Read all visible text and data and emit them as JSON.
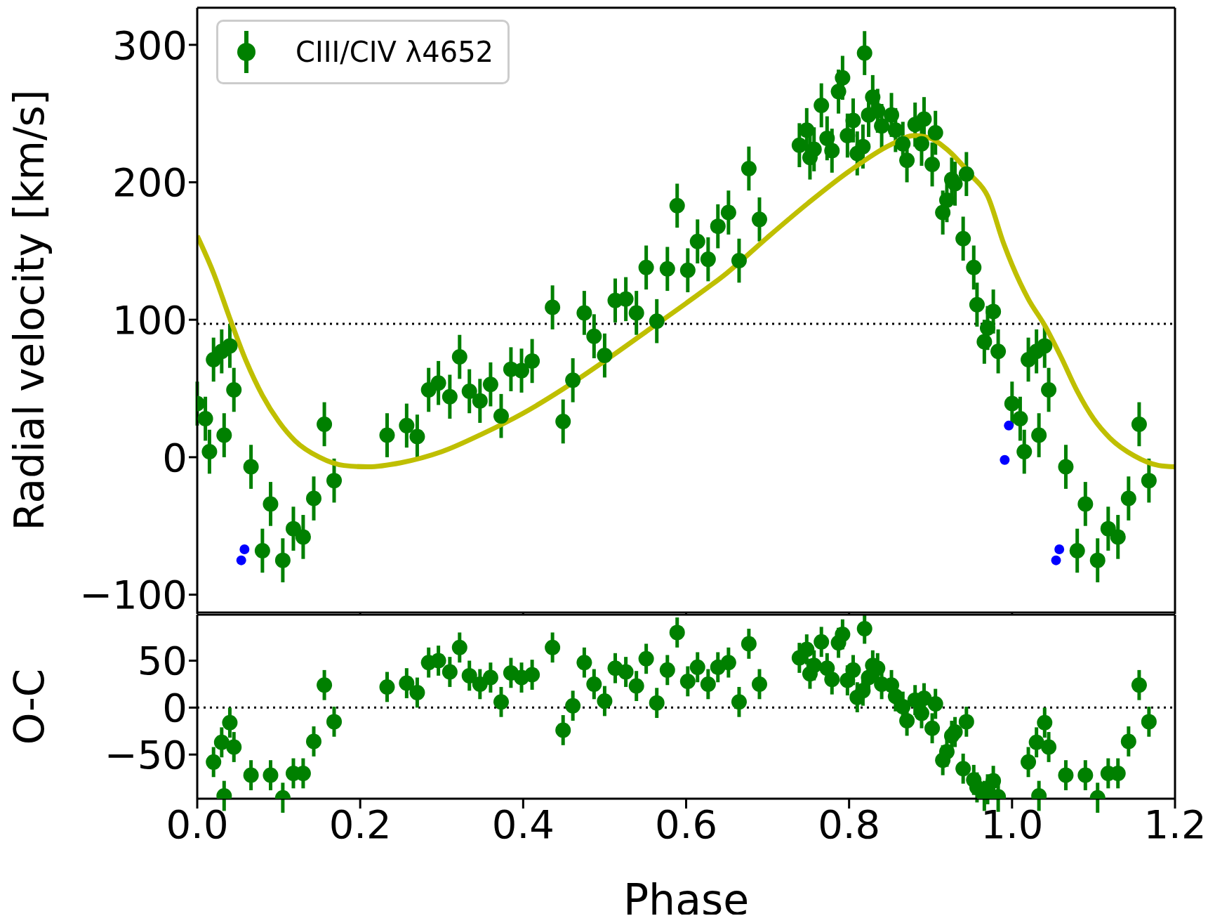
{
  "chart_data": [
    {
      "type": "scatter",
      "ylabel": "Radial velocity [km/s]",
      "xlim": [
        0,
        1.2
      ],
      "xticks": [
        0,
        0.2,
        0.4,
        0.6,
        0.8,
        1,
        1.2
      ],
      "ylim": [
        -113,
        327
      ],
      "yticks": [
        -100,
        0,
        100,
        200,
        300
      ],
      "tick_labels": "y",
      "legend": "top left",
      "marker": "circle",
      "series": [
        {
          "name": "CIII/CIV λ4652",
          "color": "#008000",
          "errors": [
            16,
            16,
            16,
            16,
            16,
            16,
            16,
            16,
            16,
            16,
            16,
            16,
            16,
            16,
            16,
            16,
            16,
            16,
            16,
            16,
            16,
            16,
            16,
            16,
            16,
            16,
            16,
            16,
            16,
            16,
            16,
            16,
            16,
            16,
            16,
            16,
            16,
            16,
            16,
            16,
            16,
            16,
            16,
            16,
            16,
            16,
            16,
            16,
            16,
            16,
            16,
            16,
            16,
            16,
            16,
            16,
            16,
            16,
            16,
            16,
            16,
            16,
            16,
            16,
            16,
            16,
            16,
            16,
            16,
            16,
            16,
            16,
            16,
            16,
            16,
            16,
            16,
            16,
            16,
            16,
            16,
            16,
            16,
            16,
            16,
            16,
            16,
            16,
            16,
            16,
            16,
            16,
            16,
            16,
            16,
            16,
            16,
            16,
            16,
            16,
            16,
            16,
            16,
            16,
            16,
            16,
            16,
            16
          ],
          "x": [
            0.0,
            0.01,
            0.015,
            0.02,
            0.03,
            0.033,
            0.04,
            0.045,
            0.066,
            0.08,
            0.09,
            0.105,
            0.118,
            0.13,
            0.143,
            0.156,
            0.168,
            0.233,
            0.257,
            0.27,
            0.284,
            0.296,
            0.31,
            0.322,
            0.334,
            0.347,
            0.36,
            0.373,
            0.385,
            0.398,
            0.411,
            0.436,
            0.449,
            0.461,
            0.475,
            0.487,
            0.5,
            0.513,
            0.526,
            0.539,
            0.551,
            0.564,
            0.577,
            0.589,
            0.602,
            0.614,
            0.627,
            0.639,
            0.652,
            0.665,
            0.677,
            0.69,
            0.739,
            0.748,
            0.752,
            0.757,
            0.766,
            0.773,
            0.779,
            0.787,
            0.792,
            0.798,
            0.805,
            0.81,
            0.817,
            0.819,
            0.824,
            0.829,
            0.835,
            0.84,
            0.852,
            0.857,
            0.866,
            0.871,
            0.881,
            0.889,
            0.892,
            0.902,
            0.906,
            0.915,
            0.92,
            0.926,
            0.93,
            0.94,
            0.944,
            0.953,
            0.957,
            0.966,
            0.97,
            0.977,
            0.983,
            1.0,
            1.01,
            1.015,
            1.02,
            1.03,
            1.033,
            1.04,
            1.045,
            1.066,
            1.08,
            1.09,
            1.105,
            1.118,
            1.13,
            1.143,
            1.156,
            1.168
          ],
          "values": [
            39,
            28,
            4,
            71,
            77,
            16,
            81,
            49,
            -7,
            -68,
            -34,
            -75,
            -52,
            -58,
            -30,
            24,
            -17,
            16,
            23,
            15,
            49,
            54,
            44,
            73,
            48,
            41,
            53,
            30,
            64,
            63,
            70,
            109,
            26,
            56,
            105,
            88,
            74,
            114,
            115,
            105,
            138,
            99,
            137,
            183,
            136,
            157,
            144,
            168,
            178,
            143,
            210,
            173,
            227,
            238,
            218,
            224,
            256,
            232,
            223,
            266,
            276,
            234,
            245,
            221,
            226,
            294,
            249,
            262,
            252,
            241,
            249,
            238,
            228,
            216,
            242,
            228,
            246,
            213,
            236,
            178,
            187,
            202,
            199,
            159,
            206,
            138,
            111,
            84,
            94,
            106,
            77,
            39,
            28,
            4,
            71,
            77,
            16,
            81,
            49,
            -7,
            -68,
            -34,
            -75,
            -52,
            -58,
            -30,
            24,
            -17
          ]
        },
        {
          "color": "#0000ff",
          "x": [
            0.054,
            0.058,
            0.991,
            0.996,
            1.054,
            1.058
          ],
          "values": [
            -75,
            -67,
            -2,
            23,
            -75,
            -67
          ]
        },
        {
          "type": "line",
          "color": "#bfbf00",
          "marker": "none",
          "x": [
            0,
            0.02,
            0.04,
            0.06,
            0.08,
            0.1,
            0.12,
            0.15,
            0.18,
            0.21,
            0.25,
            0.3,
            0.35,
            0.4,
            0.45,
            0.5,
            0.55,
            0.6,
            0.65,
            0.7,
            0.75,
            0.8,
            0.85,
            0.88,
            0.9,
            0.92,
            0.95,
            0.97,
            0.99,
            1.0,
            1.02,
            1.04,
            1.06,
            1.08,
            1.1,
            1.12,
            1.15,
            1.18,
            1.2
          ],
          "values": [
            161,
            134,
            101,
            70,
            45,
            26,
            12,
            0,
            -6,
            -7,
            -4,
            4,
            17,
            32,
            50,
            70,
            91,
            112,
            134,
            160,
            185,
            208,
            227,
            234,
            232,
            224,
            205,
            190,
            155,
            140,
            115,
            96,
            73,
            48,
            28,
            14,
            1,
            -6,
            -7
          ]
        }
      ],
      "ref_lines": [
        {
          "axis": "y",
          "value": 97,
          "color": "#000000",
          "line_style": "dotted"
        }
      ]
    },
    {
      "type": "scatter",
      "xlabel": "Phase",
      "ylabel": "O-C",
      "xlim": [
        0,
        1.2
      ],
      "xticks": [
        {
          "value": 0,
          "label": "0.0"
        },
        0.2,
        0.4,
        0.6,
        0.8,
        {
          "value": 1,
          "label": "1.0"
        },
        1.2
      ],
      "ylim": [
        -97,
        99
      ],
      "yticks": [
        -50,
        0,
        50
      ],
      "marker": "circle",
      "series": [
        {
          "color": "#008000",
          "errors": [
            16,
            16,
            16,
            16,
            16,
            16,
            16,
            16,
            16,
            16,
            16,
            16,
            16,
            16,
            16,
            16,
            16,
            16,
            16,
            16,
            16,
            16,
            16,
            16,
            16,
            16,
            16,
            16,
            16,
            16,
            16,
            16,
            16,
            16,
            16,
            16,
            16,
            16,
            16,
            16,
            16,
            16,
            16,
            16,
            16,
            16,
            16,
            16,
            16,
            16,
            16,
            16,
            16,
            16,
            16,
            16,
            16,
            16,
            16,
            16,
            16,
            16,
            16,
            16,
            16,
            16,
            16,
            16,
            16,
            16,
            16,
            16,
            16,
            16,
            16,
            16,
            16,
            16,
            16,
            16,
            16,
            16,
            16,
            16,
            16,
            16,
            16,
            16,
            16,
            16,
            16,
            16,
            16,
            16,
            16,
            16,
            16,
            16,
            16,
            16
          ],
          "x": [
            0.02,
            0.03,
            0.033,
            0.04,
            0.045,
            0.066,
            0.09,
            0.105,
            0.118,
            0.13,
            0.143,
            0.156,
            0.168,
            0.233,
            0.257,
            0.27,
            0.284,
            0.296,
            0.31,
            0.322,
            0.334,
            0.347,
            0.36,
            0.373,
            0.385,
            0.398,
            0.411,
            0.436,
            0.449,
            0.461,
            0.475,
            0.487,
            0.5,
            0.513,
            0.526,
            0.539,
            0.551,
            0.564,
            0.577,
            0.589,
            0.602,
            0.614,
            0.627,
            0.639,
            0.652,
            0.665,
            0.677,
            0.69,
            0.739,
            0.748,
            0.752,
            0.757,
            0.766,
            0.773,
            0.779,
            0.787,
            0.792,
            0.798,
            0.805,
            0.81,
            0.817,
            0.819,
            0.824,
            0.829,
            0.835,
            0.84,
            0.852,
            0.857,
            0.866,
            0.871,
            0.881,
            0.889,
            0.892,
            0.902,
            0.906,
            0.915,
            0.92,
            0.926,
            0.93,
            0.94,
            0.944,
            0.953,
            0.957,
            0.966,
            0.97,
            0.977,
            0.983,
            1.02,
            1.03,
            1.033,
            1.04,
            1.045,
            1.066,
            1.09,
            1.105,
            1.118,
            1.13,
            1.143,
            1.156,
            1.168
          ],
          "values": [
            -58,
            -37,
            -94,
            -16,
            -42,
            -72,
            -72,
            -96,
            -70,
            -70,
            -36,
            24,
            -15,
            22,
            26,
            16,
            48,
            50,
            38,
            64,
            34,
            25,
            32,
            6,
            37,
            32,
            35,
            64,
            -24,
            2,
            48,
            25,
            7,
            42,
            38,
            23,
            52,
            5,
            40,
            80,
            28,
            43,
            25,
            43,
            48,
            6,
            68,
            25,
            53,
            62,
            36,
            45,
            70,
            42,
            30,
            69,
            78,
            29,
            40,
            11,
            18,
            84,
            32,
            45,
            42,
            25,
            24,
            12,
            1,
            -14,
            8,
            -6,
            10,
            -22,
            4,
            -56,
            -47,
            -30,
            -26,
            -65,
            -15,
            -77,
            -85,
            -94,
            -87,
            -78,
            -95,
            -58,
            -37,
            -94,
            -16,
            -42,
            -72,
            -72,
            -96,
            -70,
            -70,
            -36,
            24,
            -15
          ]
        }
      ],
      "ref_lines": [
        {
          "axis": "y",
          "value": 0,
          "color": "#000000",
          "line_style": "dotted"
        }
      ]
    }
  ]
}
